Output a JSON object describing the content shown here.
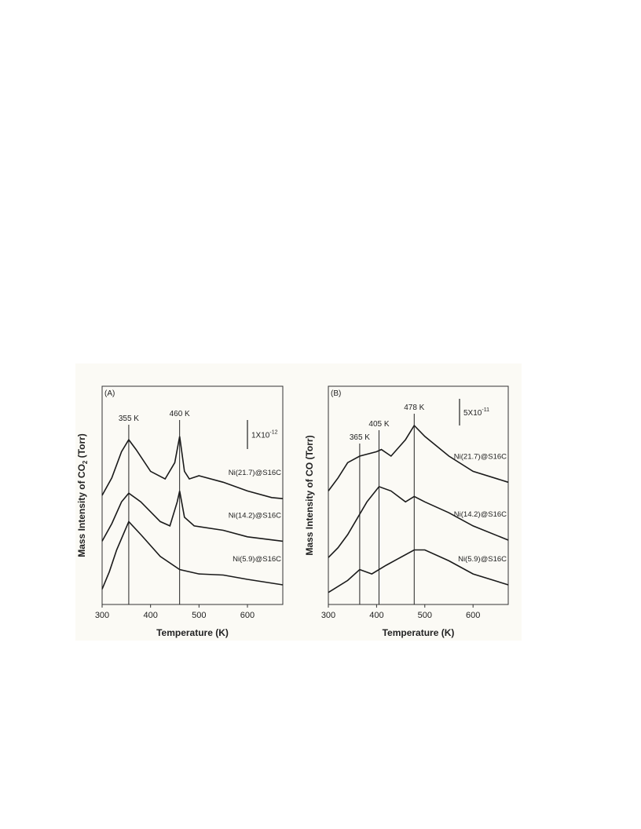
{
  "chart_data": [
    {
      "type": "line",
      "panel": "(A)",
      "y_label": {
        "text": "Mass Intensity of CO",
        "subscript": "2",
        "suffix": " (Torr)"
      },
      "x_label": "Temperature (K)",
      "xlim": [
        300,
        673
      ],
      "xticks": [
        300,
        400,
        500,
        600
      ],
      "ylim": [
        0,
        100
      ],
      "scale_bar": {
        "label": "1X10",
        "exponent": "-12"
      },
      "annotations": [
        {
          "x": 355,
          "label": "355 K"
        },
        {
          "x": 460,
          "label": "460 K"
        }
      ],
      "series": [
        {
          "name": "Ni(21.7)@S16C",
          "color": "#1a1a1a",
          "x": [
            300,
            320,
            340,
            355,
            370,
            400,
            430,
            450,
            460,
            470,
            480,
            500,
            550,
            600,
            650,
            673
          ],
          "values": [
            50,
            58,
            70,
            75.5,
            71,
            61,
            57.5,
            65,
            77,
            61,
            57.5,
            59,
            56,
            52,
            49,
            48.5
          ]
        },
        {
          "name": "Ni(14.2)@S16C",
          "color": "#1a1a1a",
          "x": [
            300,
            320,
            340,
            355,
            380,
            420,
            440,
            455,
            460,
            470,
            490,
            550,
            600,
            673
          ],
          "values": [
            29,
            37,
            47,
            51,
            47,
            38,
            36,
            47,
            52,
            40,
            36,
            34,
            31,
            29
          ]
        },
        {
          "name": "Ni(5.9)@S16C",
          "color": "#1a1a1a",
          "x": [
            300,
            315,
            330,
            355,
            380,
            420,
            460,
            500,
            550,
            600,
            673
          ],
          "values": [
            7,
            15,
            25,
            38,
            32,
            22,
            16,
            14,
            13.5,
            11.5,
            9
          ]
        }
      ]
    },
    {
      "type": "line",
      "panel": "(B)",
      "y_label": "Mass Intensity of CO (Torr)",
      "x_label": "Temperature (K)",
      "xlim": [
        300,
        673
      ],
      "xticks": [
        300,
        400,
        500,
        600
      ],
      "ylim": [
        0,
        100
      ],
      "scale_bar": {
        "label": "5X10",
        "exponent": "-11"
      },
      "annotations": [
        {
          "x": 365,
          "label": "365 K"
        },
        {
          "x": 405,
          "label": "405 K"
        },
        {
          "x": 478,
          "label": "478 K"
        }
      ],
      "series": [
        {
          "name": "Ni(21.7)@S16C",
          "color": "#1a1a1a",
          "x": [
            300,
            320,
            340,
            365,
            400,
            410,
            430,
            460,
            478,
            500,
            550,
            600,
            673
          ],
          "values": [
            52,
            58,
            65,
            68,
            70,
            71,
            68,
            75.5,
            82,
            77,
            68,
            61,
            56
          ]
        },
        {
          "name": "Ni(14.2)@S16C",
          "color": "#1a1a1a",
          "x": [
            300,
            320,
            340,
            380,
            405,
            430,
            460,
            478,
            500,
            550,
            600,
            673
          ],
          "values": [
            21.5,
            26,
            32,
            47,
            54,
            52,
            47,
            49.5,
            47,
            42,
            36,
            29.5
          ]
        },
        {
          "name": "Ni(5.9)@S16C",
          "color": "#1a1a1a",
          "x": [
            300,
            340,
            365,
            390,
            420,
            478,
            500,
            550,
            600,
            673
          ],
          "values": [
            5.5,
            11,
            16,
            14,
            18,
            25,
            25,
            20,
            14,
            9
          ]
        }
      ]
    }
  ]
}
